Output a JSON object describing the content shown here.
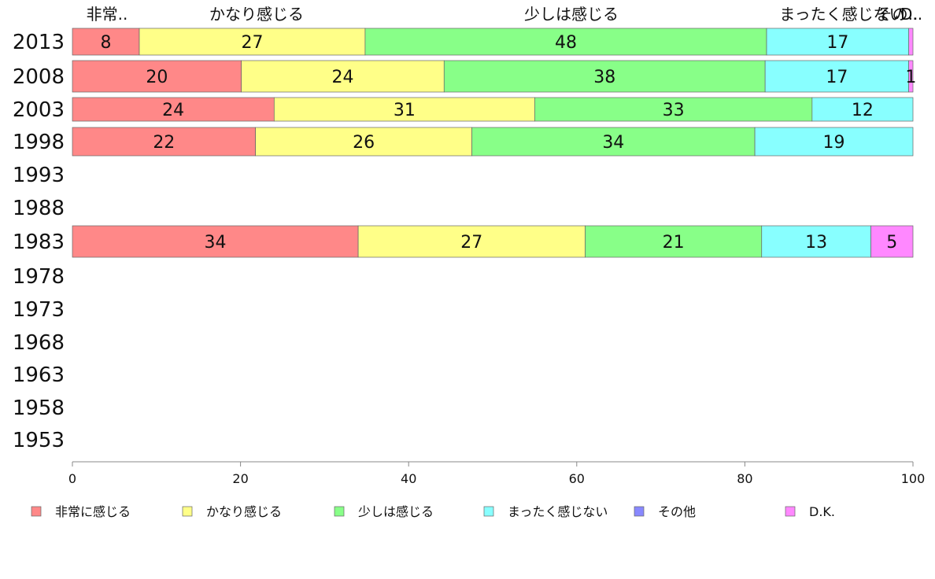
{
  "chart_data": {
    "type": "bar",
    "orientation": "horizontal",
    "stacked": true,
    "categories": [
      "2013",
      "2008",
      "2003",
      "1998",
      "1993",
      "1988",
      "1983",
      "1978",
      "1973",
      "1968",
      "1963",
      "1958",
      "1953"
    ],
    "series": [
      {
        "name": "非常に感じる",
        "short": "非常..",
        "color": "#FF8888",
        "values": [
          8,
          20,
          24,
          22,
          null,
          null,
          34,
          null,
          null,
          null,
          null,
          null,
          null
        ]
      },
      {
        "name": "かなり感じる",
        "short": "かなり感じる",
        "color": "#FFFF88",
        "values": [
          27,
          24,
          31,
          26,
          null,
          null,
          27,
          null,
          null,
          null,
          null,
          null,
          null
        ]
      },
      {
        "name": "少しは感じる",
        "short": "少しは感じる",
        "color": "#88FF88",
        "values": [
          48,
          38,
          33,
          34,
          null,
          null,
          21,
          null,
          null,
          null,
          null,
          null,
          null
        ]
      },
      {
        "name": "まったく感じない",
        "short": "まったく感じない",
        "color": "#88FFFF",
        "values": [
          17,
          17,
          12,
          19,
          null,
          null,
          13,
          null,
          null,
          null,
          null,
          null,
          null
        ]
      },
      {
        "name": "その他",
        "short": "その..",
        "color": "#8888FF",
        "values": [
          0,
          0,
          0,
          0,
          null,
          null,
          0,
          null,
          null,
          null,
          null,
          null,
          null
        ]
      },
      {
        "name": "D.K.",
        "short": "D..",
        "color": "#FF88FF",
        "values": [
          0.5,
          0.5,
          0,
          0,
          null,
          null,
          5,
          null,
          null,
          null,
          null,
          null,
          null
        ]
      }
    ],
    "bar_labels": [
      [
        "8",
        "27",
        "48",
        "17",
        "",
        ""
      ],
      [
        "20",
        "24",
        "38",
        "17",
        "",
        "1"
      ],
      [
        "24",
        "31",
        "33",
        "12",
        "",
        ""
      ],
      [
        "22",
        "26",
        "34",
        "19",
        "",
        ""
      ],
      [],
      [],
      [
        "34",
        "27",
        "21",
        "13",
        "",
        "5"
      ],
      [],
      [],
      [],
      [],
      [],
      []
    ],
    "xlim": [
      0,
      100
    ],
    "xticks": [
      "0",
      "20",
      "40",
      "60",
      "80",
      "100"
    ],
    "xlabel": "",
    "ylabel": "",
    "title": "",
    "top_labels": [
      "非常..",
      "かなり感じる",
      "少しは感じる",
      "まったく感じない",
      "その..",
      "D.."
    ],
    "legend_position": "bottom",
    "grid": false
  }
}
